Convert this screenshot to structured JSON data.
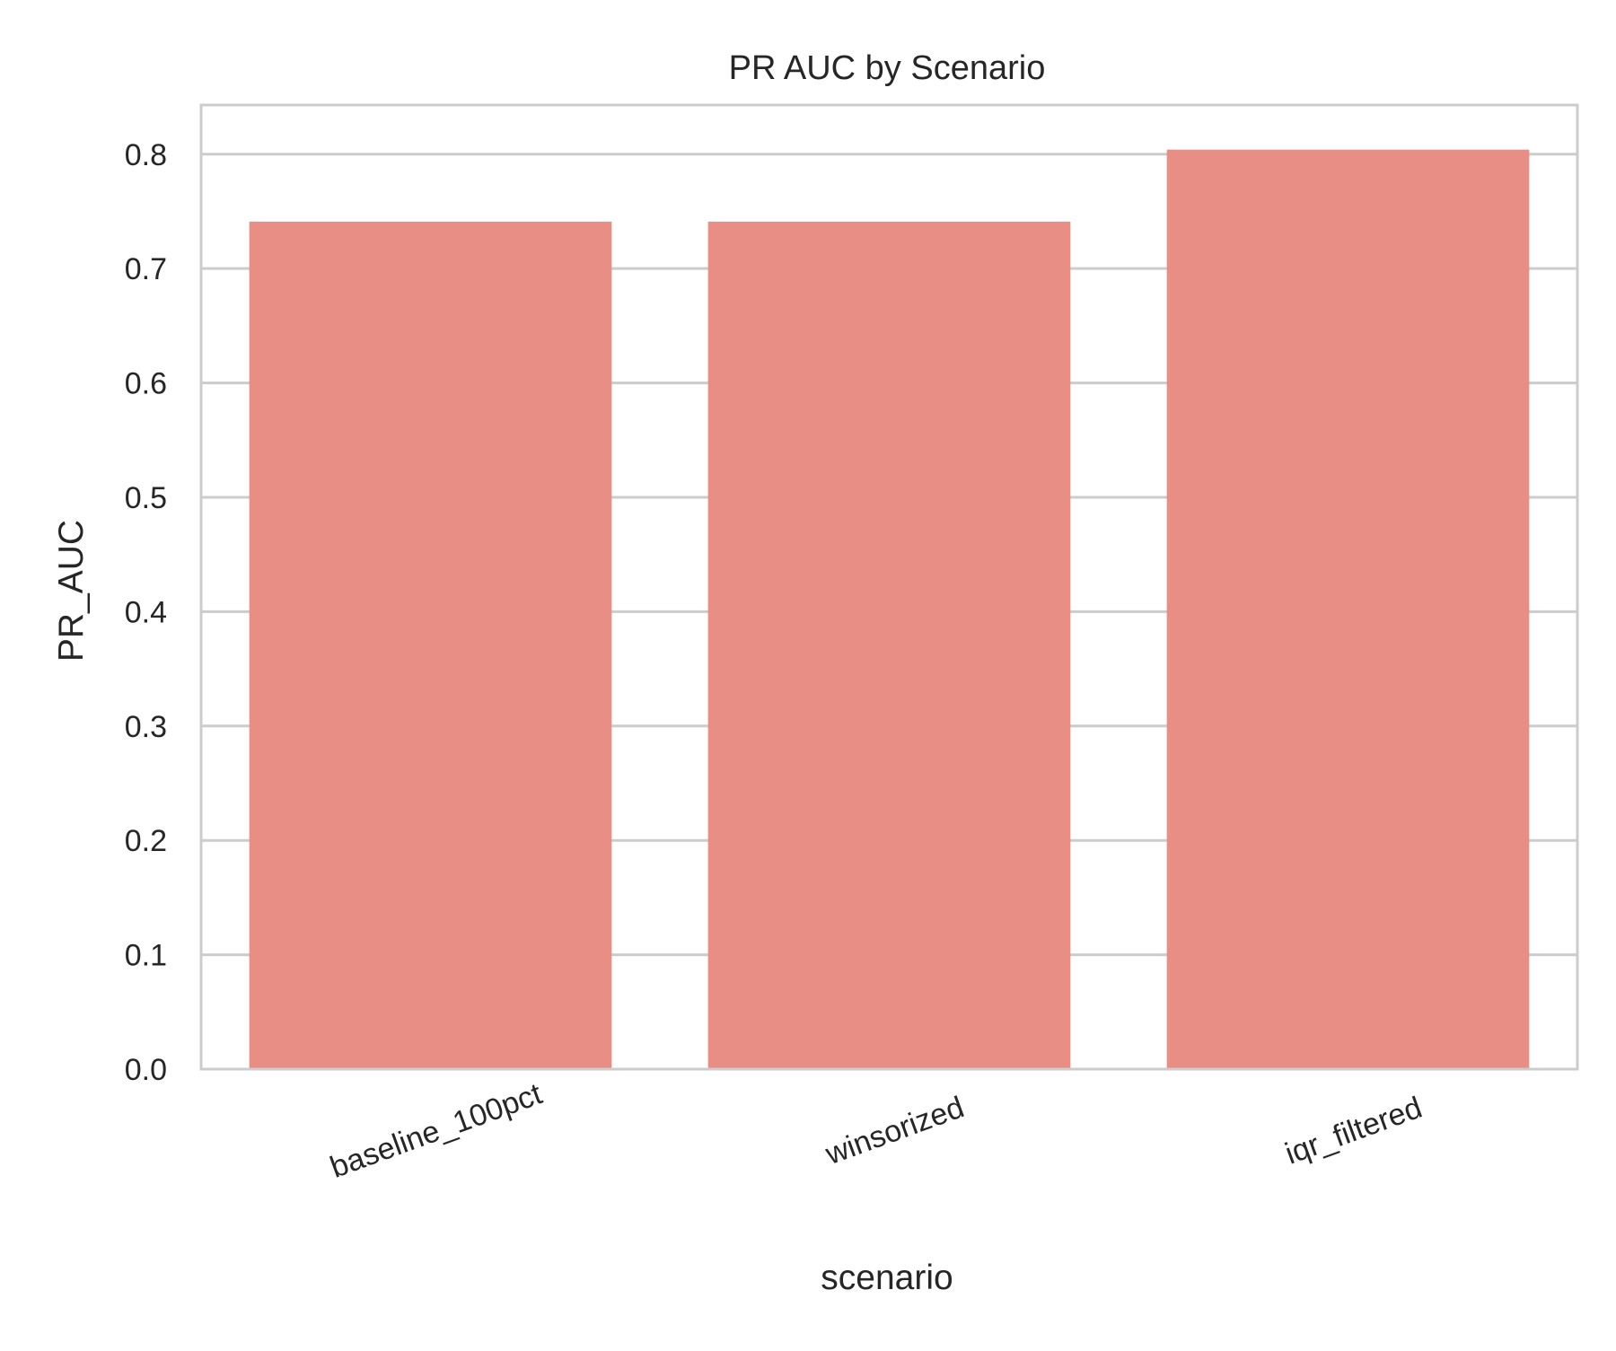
{
  "chart_data": {
    "type": "bar",
    "title": "PR AUC by Scenario",
    "xlabel": "scenario",
    "ylabel": "PR_AUC",
    "categories": [
      "baseline_100pct",
      "winsorized",
      "iqr_filtered"
    ],
    "values": [
      0.741,
      0.741,
      0.804
    ],
    "ylim": [
      0,
      0.843
    ],
    "yticks": [
      0.0,
      0.1,
      0.2,
      0.3,
      0.4,
      0.5,
      0.6,
      0.7,
      0.8
    ],
    "ytick_labels": [
      "0.0",
      "0.1",
      "0.2",
      "0.3",
      "0.4",
      "0.5",
      "0.6",
      "0.7",
      "0.8"
    ],
    "grid": "horizontal",
    "bar_color": "#e88e84",
    "grid_color": "#cccccc",
    "spine_color": "#cccccc"
  }
}
